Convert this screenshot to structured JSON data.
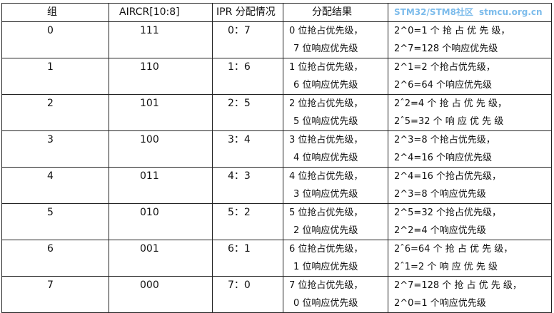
{
  "headers": [
    "组",
    "AIRCR[10:8]",
    "IPR 分配情况",
    "分配结果",
    ""
  ],
  "rows": [
    {
      "group": "0",
      "aircr": "111",
      "ipr": "0：7",
      "result": [
        "0 位抢占优先级，",
        "7 位响应优先级"
      ],
      "count": [
        "2^0=1  个 抢 占 优 先 级，",
        "2^7=128 个响应优先级"
      ]
    },
    {
      "group": "1",
      "aircr": "110",
      "ipr": "1：6",
      "result": [
        "1 位抢占优先级，",
        "6 位响应优先级"
      ],
      "count": [
        "2^1=2 个抢占优先级，",
        "2^6=64 个响应优先级"
      ]
    },
    {
      "group": "2",
      "aircr": "101",
      "ipr": "2：5",
      "result": [
        "2 位抢占优先级，",
        "5 位响应优先级"
      ],
      "count": [
        "2ˆ2=4 个 抢 占 优 先 级，",
        "2ˆ5=32 个 响 应 优 先 级"
      ]
    },
    {
      "group": "3",
      "aircr": "100",
      "ipr": "3：4",
      "result": [
        "3 位抢占优先级，",
        "4 位响应优先级"
      ],
      "count": [
        "2^3=8 个抢占优先级，",
        "2^4=16 个响应优先级"
      ]
    },
    {
      "group": "4",
      "aircr": "011",
      "ipr": "4：3",
      "result": [
        "4 位抢占优先级，",
        "3 位响应优先级"
      ],
      "count": [
        "2^4=16 个抢占优先级，",
        "2^3=8 个响应优先级"
      ]
    },
    {
      "group": "5",
      "aircr": "010",
      "ipr": "5：2",
      "result": [
        "5 位抢占优先级，",
        "2 位响应优先级"
      ],
      "count": [
        "2^5=32 个抢占优先级，",
        "2^2=4 个响应优先级"
      ]
    },
    {
      "group": "6",
      "aircr": "001",
      "ipr": "6：1",
      "result": [
        "6 位抢占优先级，",
        "1 位响应优先级"
      ],
      "count": [
        "2ˆ6=64 个 抢 占 优 先 级，",
        "2ˆ1=2 个 响 应 优 先 级"
      ]
    },
    {
      "group": "7",
      "aircr": "000",
      "ipr": "7：0",
      "result": [
        "7 位抢占优先级，",
        "0 位响应优先级"
      ],
      "count": [
        "2^7=128  个 抢 占 优 先 级，",
        "2^0=1 个响应优先级"
      ]
    }
  ],
  "watermark": [
    "STM32/STM8社区",
    "stmcu.org.cn"
  ]
}
